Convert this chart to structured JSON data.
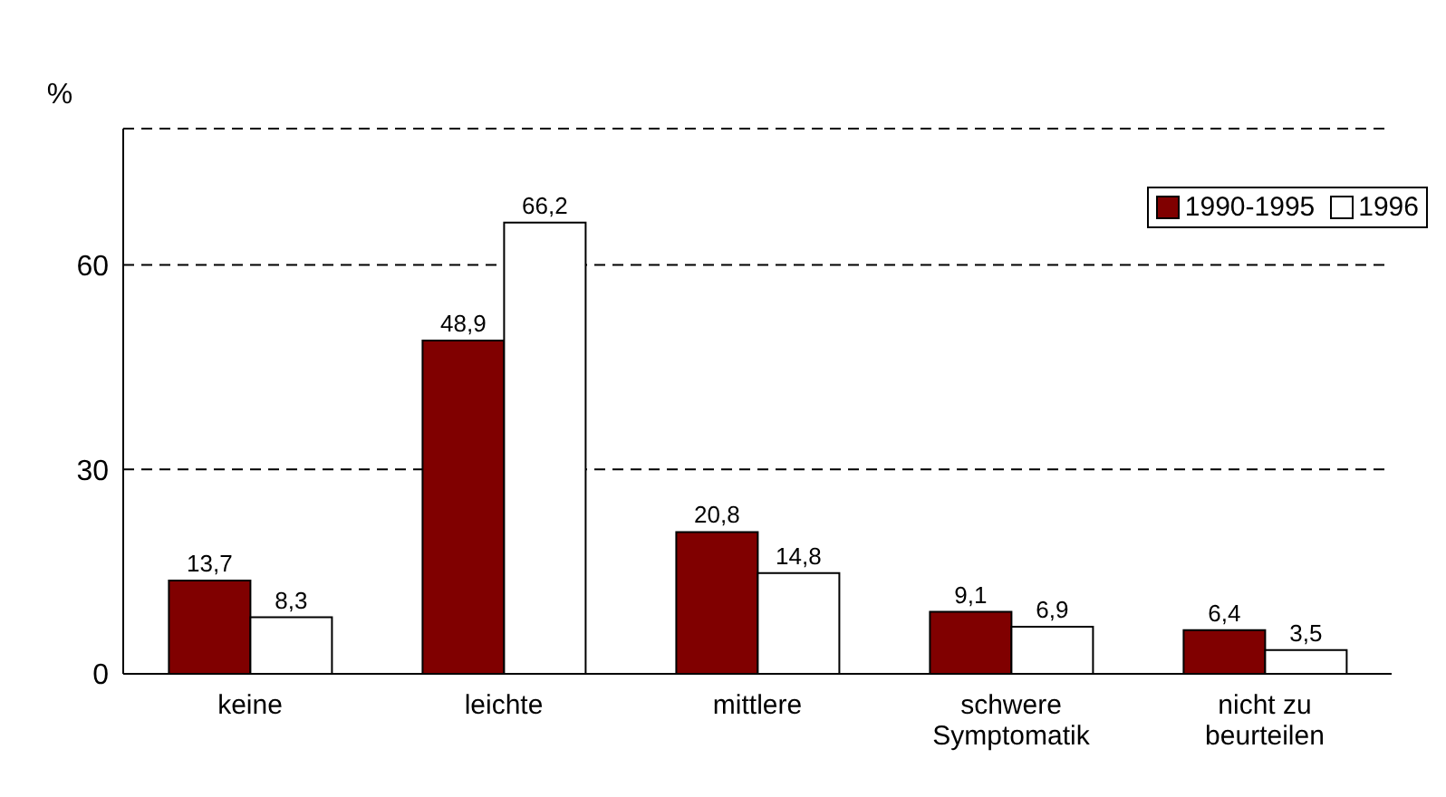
{
  "chart_data": {
    "type": "bar",
    "ylabel": "%",
    "categories": [
      "keine",
      "leichte",
      "mittlere",
      "schwere Symptomatik",
      "nicht zu beurteilen"
    ],
    "series": [
      {
        "name": "1990-1995",
        "color": "#800000",
        "values": [
          13.7,
          48.9,
          20.8,
          9.1,
          6.4
        ],
        "value_labels": [
          "13,7",
          "48,9",
          "20,8",
          "9,1",
          "6,4"
        ]
      },
      {
        "name": "1996",
        "color": "#ffffff",
        "values": [
          8.3,
          66.2,
          14.8,
          6.9,
          3.5
        ],
        "value_labels": [
          "8,3",
          "66,2",
          "14,8",
          "6,9",
          "3,5"
        ]
      }
    ],
    "ylim": [
      0,
      80
    ],
    "yticks": [
      0,
      30,
      60
    ],
    "grid": "y",
    "legend": "top right"
  }
}
